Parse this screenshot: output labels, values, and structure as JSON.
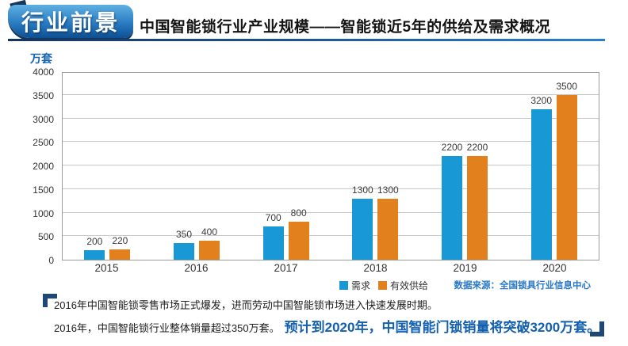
{
  "header": {
    "badge": "行业前景",
    "title": "中国智能锁行业产业规模——智能锁近5年的供给及需求概况"
  },
  "chart_data": {
    "type": "bar",
    "title": "中国智能锁近5年的供给及需求概况",
    "unit_label": "万套",
    "categories": [
      "2015",
      "2016",
      "2017",
      "2018",
      "2019",
      "2020"
    ],
    "series": [
      {
        "name": "需求",
        "color": "#1898d5",
        "values": [
          200,
          350,
          700,
          1300,
          2200,
          3200
        ]
      },
      {
        "name": "有效供给",
        "color": "#e2801e",
        "values": [
          220,
          400,
          800,
          1300,
          2200,
          3500
        ]
      }
    ],
    "ylim": [
      0,
      4000
    ],
    "ytick_step": 500,
    "grid": true,
    "legend_position": "bottom"
  },
  "source_note": "数据来源：全国锁具行业信息中心",
  "footer": {
    "line1": "2016年中国智能锁零售市场正式爆发，进而劳动中国智能锁市场进入快速发展时期。",
    "line2_black": "2016年，中国智能锁行业整体销量超过350万套。",
    "line2_blue": "预计到2020年，中国智能门锁销量将突破3200万套。"
  },
  "colors": {
    "demand_bar": "#1898d5",
    "supply_bar": "#e2801e",
    "navy_accent": "#1f4876",
    "highlight_text": "#1460b0",
    "source_text": "#2878c8"
  }
}
